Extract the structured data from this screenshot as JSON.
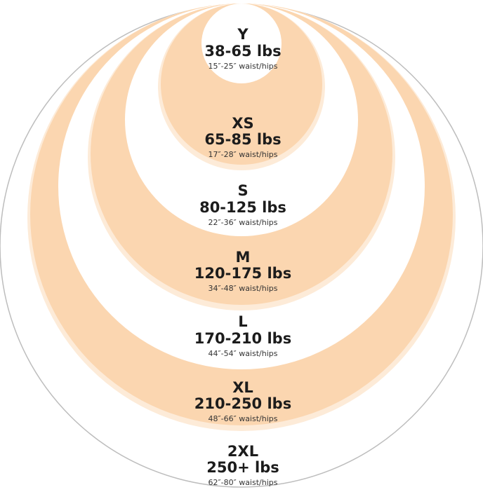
{
  "colors": {
    "outline": "#bdbdbd",
    "band_orange": "#fbd6b0",
    "band_light": "#fdebd8",
    "band_white": "#ffffff",
    "text": "#1c1c1c"
  },
  "sizes": [
    {
      "label": "Y",
      "weight": "38-65 lbs",
      "measure": "15″-25″ waist/hips"
    },
    {
      "label": "XS",
      "weight": "65-85 lbs",
      "measure": "17″-28″ waist/hips"
    },
    {
      "label": "S",
      "weight": "80-125 lbs",
      "measure": "22″-36″ waist/hips"
    },
    {
      "label": "M",
      "weight": "120-175 lbs",
      "measure": "34″-48″ waist/hips"
    },
    {
      "label": "L",
      "weight": "170-210 lbs",
      "measure": "44″-54″ waist/hips"
    },
    {
      "label": "XL",
      "weight": "210-250 lbs",
      "measure": "48″-66″ waist/hips"
    },
    {
      "label": "2XL",
      "weight": "250+ lbs",
      "measure": "62″-80″ waist/hips"
    }
  ]
}
